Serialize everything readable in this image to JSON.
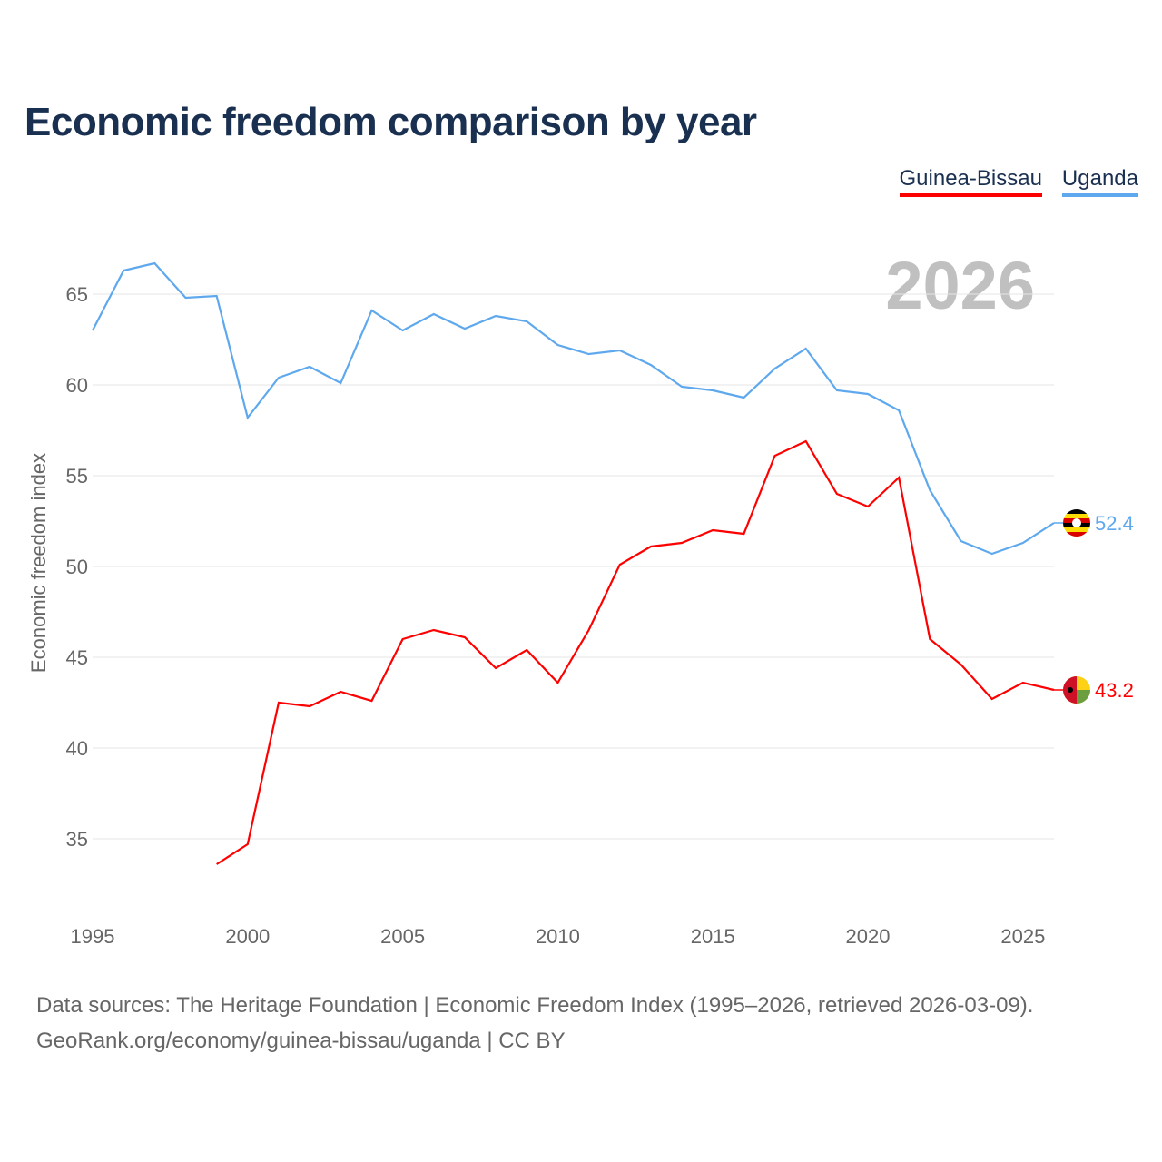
{
  "title": "Economic freedom comparison by year",
  "colors": {
    "guinea_bissau": "#ff0000",
    "uganda": "#5ea8ee",
    "grid": "#e6e6e6",
    "year_watermark": "#c0c0c0"
  },
  "footer": {
    "line1": "Data sources: The Heritage Foundation | Economic Freedom Index (1995–2026, retrieved 2026-03-09).",
    "line2": "GeoRank.org/economy/guinea-bissau/uganda | CC BY"
  },
  "chart_data": {
    "type": "line",
    "title": "Economic freedom comparison by year",
    "xlabel": "",
    "ylabel": "Economic freedom index",
    "watermark": "2026",
    "xlim": [
      1995,
      2026
    ],
    "ylim": [
      31.2,
      68.2
    ],
    "xticks": [
      "1995",
      "2000",
      "2005",
      "2010",
      "2015",
      "2020",
      "2025"
    ],
    "yticks": [
      "35",
      "40",
      "45",
      "50",
      "55",
      "60",
      "65"
    ],
    "grid": true,
    "legend_position": "top-right",
    "series": [
      {
        "name": "Guinea-Bissau",
        "end_label": "43.2",
        "x": [
          1999,
          2000,
          2001,
          2002,
          2003,
          2004,
          2005,
          2006,
          2007,
          2008,
          2009,
          2010,
          2011,
          2012,
          2013,
          2014,
          2015,
          2016,
          2017,
          2018,
          2019,
          2020,
          2021,
          2022,
          2023,
          2024,
          2025,
          2026
        ],
        "values": [
          33.6,
          34.7,
          42.5,
          42.3,
          43.1,
          42.6,
          46.0,
          46.5,
          46.1,
          44.4,
          45.4,
          43.6,
          46.5,
          50.1,
          51.1,
          51.3,
          52.0,
          51.8,
          56.1,
          56.9,
          54.0,
          53.3,
          54.9,
          46.0,
          44.6,
          42.7,
          43.6,
          43.2
        ]
      },
      {
        "name": "Uganda",
        "end_label": "52.4",
        "x": [
          1995,
          1996,
          1997,
          1998,
          1999,
          2000,
          2001,
          2002,
          2003,
          2004,
          2005,
          2006,
          2007,
          2008,
          2009,
          2010,
          2011,
          2012,
          2013,
          2014,
          2015,
          2016,
          2017,
          2018,
          2019,
          2020,
          2021,
          2022,
          2023,
          2024,
          2025,
          2026
        ],
        "values": [
          63.0,
          66.3,
          66.7,
          64.8,
          64.9,
          58.2,
          60.4,
          61.0,
          60.1,
          64.1,
          63.0,
          63.9,
          63.1,
          63.8,
          63.5,
          62.2,
          61.7,
          61.9,
          61.1,
          59.9,
          59.7,
          59.3,
          60.9,
          62.0,
          59.7,
          59.5,
          58.6,
          54.2,
          51.4,
          50.7,
          51.3,
          52.4
        ]
      }
    ]
  }
}
